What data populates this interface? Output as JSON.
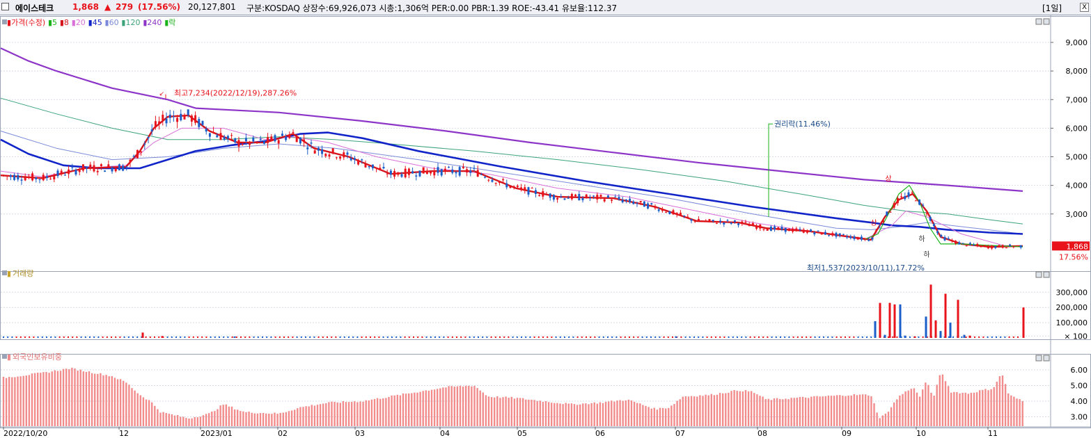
{
  "header": {
    "name": "에이스테크",
    "price": "1,868",
    "change_arrow": "▲",
    "change": "279",
    "change_pct": "(17.56%)",
    "volume": "20,127,801",
    "info": "구분:KOSDAQ 상장수:69,926,073 시총:1,306억 PER:0.00 PBR:1.39 ROE:-43.41 유보율:112.37",
    "period": "[1일]",
    "close_symbol": "X"
  },
  "colors": {
    "up": "#e8131b",
    "down": "#1b5ec9",
    "ma5": "#19b219",
    "ma8": "#d4131b",
    "ma20": "#d870d8",
    "ma45": "#1024c8",
    "ma60": "#7a8ad8",
    "ma120": "#3aa37a",
    "ma240": "#8d35c8",
    "foreign": "#f28b8b",
    "grid": "#d6dbe6"
  },
  "chart_data": [
    {
      "type": "line",
      "panel": "price",
      "legend": [
        "가격(수정)",
        "5",
        "8",
        "20",
        "45",
        "60",
        "120",
        "240",
        "락"
      ],
      "ylim": [
        1000,
        9900
      ],
      "yticks": [
        "9,000",
        "8,000",
        "7,000",
        "6,000",
        "5,000",
        "4,000",
        "3,000"
      ],
      "current_price_label": "1,868",
      "current_pct_label": "17.56%",
      "series": [
        {
          "name": "240",
          "x": [
            0,
            40,
            80,
            160,
            240,
            280,
            400,
            520,
            640,
            760,
            880,
            1000,
            1120,
            1240,
            1360,
            1468
          ],
          "y": [
            8800,
            8350,
            8000,
            7400,
            7000,
            6700,
            6550,
            6250,
            5900,
            5500,
            5150,
            4800,
            4500,
            4200,
            4000,
            3800
          ]
        },
        {
          "name": "120",
          "x": [
            0,
            80,
            160,
            240,
            320,
            400,
            480,
            560,
            680,
            800,
            920,
            1040,
            1160,
            1240,
            1300,
            1360,
            1420,
            1468
          ],
          "y": [
            7050,
            6500,
            6000,
            5600,
            5600,
            5700,
            5600,
            5450,
            5200,
            4900,
            4550,
            4150,
            3650,
            3300,
            3100,
            3000,
            2800,
            2650
          ]
        },
        {
          "name": "60",
          "x": [
            0,
            80,
            160,
            240,
            320,
            400,
            480,
            600,
            720,
            840,
            960,
            1080,
            1200,
            1250,
            1290,
            1330,
            1400,
            1468
          ],
          "y": [
            5900,
            5300,
            4900,
            5000,
            5300,
            5450,
            5300,
            4900,
            4450,
            4000,
            3550,
            3000,
            2500,
            2450,
            2550,
            2700,
            2500,
            2300
          ]
        },
        {
          "name": "45",
          "x": [
            0,
            40,
            90,
            140,
            200,
            240,
            280,
            330,
            380,
            430,
            470,
            520,
            600,
            720,
            840,
            960,
            1080,
            1200,
            1250,
            1280,
            1320,
            1360,
            1420,
            1468
          ],
          "y": [
            5600,
            5100,
            4700,
            4600,
            4600,
            4900,
            5200,
            5400,
            5550,
            5800,
            5850,
            5650,
            5200,
            4650,
            4150,
            3700,
            3250,
            2850,
            2700,
            2600,
            2550,
            2450,
            2350,
            2300
          ]
        },
        {
          "name": "20",
          "x": [
            0,
            60,
            120,
            180,
            220,
            260,
            320,
            380,
            420,
            470,
            540,
            620,
            700,
            800,
            900,
            1000,
            1080,
            1160,
            1240,
            1280,
            1300,
            1330,
            1380,
            1440,
            1468
          ],
          "y": [
            4500,
            4300,
            4600,
            4700,
            5500,
            6000,
            6000,
            5600,
            5700,
            5500,
            5000,
            4600,
            4400,
            3900,
            3600,
            3100,
            2700,
            2400,
            2100,
            2600,
            3100,
            2900,
            2300,
            1900,
            1850
          ]
        },
        {
          "name": "8",
          "x": [
            0,
            60,
            120,
            180,
            200,
            220,
            240,
            270,
            300,
            340,
            380,
            420,
            450,
            500,
            560,
            620,
            680,
            740,
            800,
            880,
            940,
            1000,
            1060,
            1100,
            1160,
            1220,
            1250,
            1270,
            1290,
            1310,
            1330,
            1350,
            1380,
            1420,
            1468
          ],
          "y": [
            4350,
            4250,
            4600,
            4650,
            5200,
            6000,
            6400,
            6450,
            5900,
            5500,
            5500,
            5800,
            5300,
            5000,
            4400,
            4500,
            4500,
            3900,
            3600,
            3550,
            3250,
            2750,
            2700,
            2500,
            2400,
            2200,
            2100,
            2900,
            3500,
            3700,
            3100,
            2200,
            1950,
            1850,
            1880
          ]
        },
        {
          "name": "5",
          "x": [
            1240,
            1260,
            1275,
            1290,
            1305,
            1320,
            1335,
            1350,
            1380,
            1420,
            1468
          ],
          "y": [
            2100,
            2300,
            3000,
            3700,
            4000,
            3400,
            2500,
            1950,
            1950,
            1900,
            1850
          ]
        }
      ],
      "annotations": [
        {
          "text": "최고7,234(2022/12/19),287.26%",
          "x": 237,
          "y": 7234
        },
        {
          "text": "권리락(11.46%)",
          "x": 1103,
          "y": 2900
        },
        {
          "text": "최저1,537(2023/10/11),17.72%",
          "x": 1325,
          "y": 1537
        }
      ],
      "markers": [
        {
          "text": "상",
          "x": 1254,
          "y": 2600
        },
        {
          "text": "상",
          "x": 1275,
          "y": 4150
        },
        {
          "text": "하",
          "x": 1323,
          "y": 2050
        },
        {
          "text": "하",
          "x": 1330,
          "y": 1500
        }
      ]
    },
    {
      "type": "bar",
      "panel": "volume",
      "legend": [
        "거래량"
      ],
      "ylim": [
        0,
        420000
      ],
      "yticks": [
        "300,000",
        "200,000",
        "100,000",
        "× 100"
      ],
      "bars": [
        {
          "x": 204,
          "v": 35000,
          "up": true
        },
        {
          "x": 232,
          "v": 12000,
          "up": true
        },
        {
          "x": 336,
          "v": 9000,
          "up": false
        },
        {
          "x": 970,
          "v": 10000,
          "up": false
        },
        {
          "x": 1256,
          "v": 110000,
          "up": false
        },
        {
          "x": 1263,
          "v": 230000,
          "up": true
        },
        {
          "x": 1270,
          "v": 20000,
          "up": false
        },
        {
          "x": 1277,
          "v": 230000,
          "up": true
        },
        {
          "x": 1284,
          "v": 220000,
          "up": true
        },
        {
          "x": 1292,
          "v": 220000,
          "up": false
        },
        {
          "x": 1299,
          "v": 15000,
          "up": false
        },
        {
          "x": 1313,
          "v": 10000,
          "up": true
        },
        {
          "x": 1329,
          "v": 140000,
          "up": false
        },
        {
          "x": 1336,
          "v": 350000,
          "up": true
        },
        {
          "x": 1343,
          "v": 115000,
          "up": true
        },
        {
          "x": 1350,
          "v": 45000,
          "up": false
        },
        {
          "x": 1357,
          "v": 290000,
          "up": true
        },
        {
          "x": 1364,
          "v": 100000,
          "up": false
        },
        {
          "x": 1375,
          "v": 250000,
          "up": true
        },
        {
          "x": 1384,
          "v": 20000,
          "up": false
        },
        {
          "x": 1392,
          "v": 15000,
          "up": true
        },
        {
          "x": 1469,
          "v": 200000,
          "up": true
        }
      ]
    },
    {
      "type": "bar",
      "panel": "foreign",
      "legend": [
        "외국인보유비중"
      ],
      "ylim": [
        2.4,
        6.8
      ],
      "yticks": [
        "6.00",
        "5.00",
        "4.00",
        "3.00"
      ],
      "anchors_x": [
        4,
        60,
        100,
        160,
        180,
        200,
        215,
        230,
        270,
        300,
        320,
        350,
        400,
        430,
        470,
        520,
        560,
        600,
        640,
        680,
        700,
        740,
        780,
        820,
        860,
        900,
        940,
        960,
        980,
        1020,
        1060,
        1080,
        1100,
        1140,
        1180,
        1220,
        1250,
        1262,
        1272,
        1290,
        1310,
        1320,
        1330,
        1340,
        1350,
        1355,
        1365,
        1390,
        1410,
        1425,
        1438,
        1448,
        1468
      ],
      "anchors_v": [
        5.5,
        5.8,
        6.1,
        5.6,
        5.2,
        4.4,
        4.0,
        3.3,
        2.9,
        3.2,
        3.8,
        3.3,
        3.2,
        3.6,
        3.9,
        4.0,
        4.3,
        4.6,
        4.9,
        5.0,
        4.3,
        4.2,
        4.0,
        3.8,
        3.9,
        4.1,
        3.5,
        3.6,
        4.3,
        4.4,
        4.7,
        4.6,
        4.1,
        4.2,
        4.3,
        4.4,
        4.4,
        2.9,
        3.2,
        4.3,
        4.9,
        4.3,
        5.3,
        4.2,
        5.9,
        5.5,
        4.6,
        4.5,
        4.7,
        4.8,
        5.8,
        4.4,
        4.0
      ]
    }
  ],
  "x_axis": {
    "labels": [
      "2022/10/20",
      "12",
      "2023/01",
      "02",
      "03",
      "04",
      "05",
      "06",
      "07",
      "08",
      "09",
      "10",
      "11"
    ]
  }
}
